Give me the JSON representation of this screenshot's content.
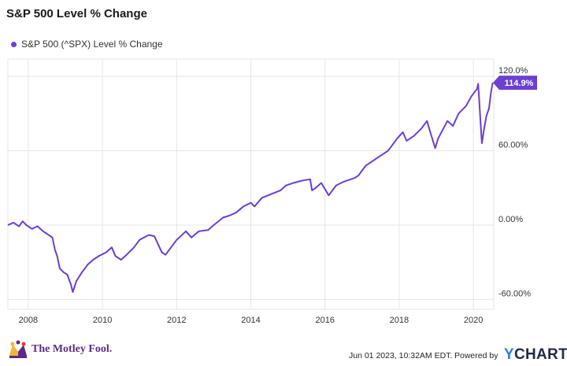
{
  "chart_data": {
    "type": "line",
    "title": "S&P 500 Level % Change",
    "series": [
      {
        "name": "S&P 500 (^SPX) Level % Change",
        "color": "#6a3fd1",
        "points": [
          [
            2007.45,
            0
          ],
          [
            2007.6,
            2
          ],
          [
            2007.75,
            -1
          ],
          [
            2007.85,
            3
          ],
          [
            2007.95,
            0
          ],
          [
            2008.1,
            -3
          ],
          [
            2008.25,
            -1
          ],
          [
            2008.4,
            -5
          ],
          [
            2008.55,
            -8
          ],
          [
            2008.65,
            -10
          ],
          [
            2008.72,
            -20
          ],
          [
            2008.78,
            -25
          ],
          [
            2008.85,
            -35
          ],
          [
            2008.95,
            -38
          ],
          [
            2009.05,
            -40
          ],
          [
            2009.15,
            -48
          ],
          [
            2009.2,
            -54
          ],
          [
            2009.3,
            -45
          ],
          [
            2009.45,
            -38
          ],
          [
            2009.6,
            -32
          ],
          [
            2009.75,
            -28
          ],
          [
            2009.9,
            -25
          ],
          [
            2010.1,
            -22
          ],
          [
            2010.25,
            -18
          ],
          [
            2010.35,
            -25
          ],
          [
            2010.5,
            -28
          ],
          [
            2010.65,
            -24
          ],
          [
            2010.85,
            -18
          ],
          [
            2011.0,
            -12
          ],
          [
            2011.25,
            -8
          ],
          [
            2011.4,
            -9
          ],
          [
            2011.6,
            -22
          ],
          [
            2011.7,
            -24
          ],
          [
            2011.85,
            -18
          ],
          [
            2012.0,
            -12
          ],
          [
            2012.25,
            -5
          ],
          [
            2012.4,
            -10
          ],
          [
            2012.6,
            -5
          ],
          [
            2012.85,
            -4
          ],
          [
            2013.0,
            0
          ],
          [
            2013.25,
            6
          ],
          [
            2013.45,
            8
          ],
          [
            2013.6,
            10
          ],
          [
            2013.8,
            15
          ],
          [
            2014.0,
            18
          ],
          [
            2014.1,
            15
          ],
          [
            2014.3,
            22
          ],
          [
            2014.55,
            25
          ],
          [
            2014.8,
            28
          ],
          [
            2014.95,
            32
          ],
          [
            2015.15,
            34
          ],
          [
            2015.4,
            36
          ],
          [
            2015.6,
            37
          ],
          [
            2015.65,
            28
          ],
          [
            2015.75,
            30
          ],
          [
            2015.9,
            34
          ],
          [
            2016.1,
            24
          ],
          [
            2016.3,
            32
          ],
          [
            2016.5,
            35
          ],
          [
            2016.8,
            38
          ],
          [
            2016.9,
            40
          ],
          [
            2017.1,
            48
          ],
          [
            2017.4,
            54
          ],
          [
            2017.7,
            60
          ],
          [
            2017.95,
            70
          ],
          [
            2018.1,
            75
          ],
          [
            2018.2,
            68
          ],
          [
            2018.4,
            72
          ],
          [
            2018.6,
            78
          ],
          [
            2018.75,
            84
          ],
          [
            2018.85,
            74
          ],
          [
            2018.97,
            62
          ],
          [
            2019.05,
            70
          ],
          [
            2019.3,
            84
          ],
          [
            2019.45,
            80
          ],
          [
            2019.6,
            90
          ],
          [
            2019.8,
            96
          ],
          [
            2019.95,
            104
          ],
          [
            2020.1,
            110
          ],
          [
            2020.13,
            114
          ],
          [
            2020.16,
            100
          ],
          [
            2020.2,
            80
          ],
          [
            2020.23,
            66
          ],
          [
            2020.28,
            76
          ],
          [
            2020.35,
            88
          ],
          [
            2020.42,
            94
          ],
          [
            2020.48,
            108
          ],
          [
            2020.52,
            114.9
          ]
        ]
      }
    ],
    "x_ticks": [
      2008,
      2010,
      2012,
      2014,
      2016,
      2018,
      2020
    ],
    "y_ticks": [
      -60,
      0,
      60,
      120
    ],
    "x_tick_labels": [
      "2008",
      "2010",
      "2012",
      "2014",
      "2016",
      "2018",
      "2020"
    ],
    "y_tick_labels": [
      "-60.00%",
      "0.00%",
      "60.00%",
      "120.0%"
    ],
    "xlim": [
      2007.45,
      2020.55
    ],
    "ylim": [
      -68,
      134
    ],
    "last_value_label": "114.9%",
    "grid": true,
    "legend_position": "top-left"
  },
  "header": {
    "title": "S&P 500 Level % Change",
    "legend_label": "S&P 500 (^SPX) Level % Change"
  },
  "footer": {
    "brand": "The Motley Fool.",
    "timestamp": "Jun 01 2023, 10:32AM EDT.",
    "powered_by": "Powered by",
    "provider": "CHARTS",
    "provider_prefix": "Y"
  }
}
